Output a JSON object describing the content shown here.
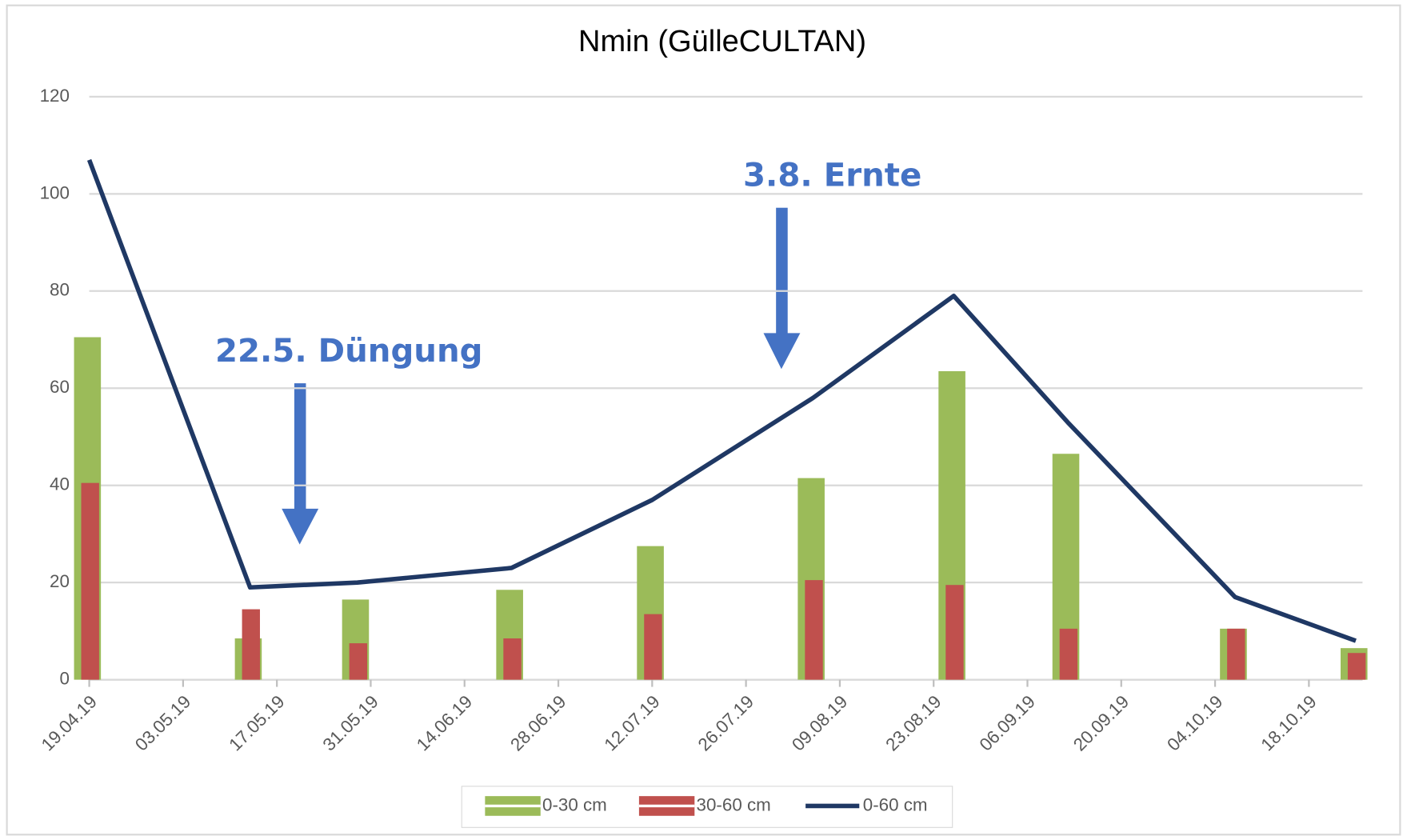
{
  "chart_data": {
    "type": "combo",
    "title": "Nmin (GülleCULTAN)",
    "x": [
      "2019-04-19",
      "2019-05-13",
      "2019-05-29",
      "2019-06-21",
      "2019-07-12",
      "2019-08-05",
      "2019-08-26",
      "2019-09-12",
      "2019-10-07",
      "2019-10-25"
    ],
    "series": [
      {
        "name": "0-30 cm",
        "type": "bar",
        "color": "#9bbb59",
        "values": [
          70.5,
          8.5,
          16.5,
          18.5,
          27.5,
          41.5,
          63.5,
          46.5,
          10.5,
          6.5
        ]
      },
      {
        "name": "30-60 cm",
        "type": "bar",
        "color": "#c0504d",
        "values": [
          40.5,
          14.5,
          7.5,
          8.5,
          13.5,
          20.5,
          19.5,
          10.5,
          10.5,
          5.5
        ]
      },
      {
        "name": "0-60 cm",
        "type": "line",
        "color": "#1f3864",
        "values": [
          107,
          19,
          20,
          23,
          37,
          58,
          79,
          53,
          17,
          8
        ]
      }
    ],
    "xlim": [
      "2019-04-19",
      "2019-10-26"
    ],
    "xticks": [
      {
        "value": "2019-04-19",
        "label": "19.04.19"
      },
      {
        "value": "2019-05-03",
        "label": "03.05.19"
      },
      {
        "value": "2019-05-17",
        "label": "17.05.19"
      },
      {
        "value": "2019-05-31",
        "label": "31.05.19"
      },
      {
        "value": "2019-06-14",
        "label": "14.06.19"
      },
      {
        "value": "2019-06-28",
        "label": "28.06.19"
      },
      {
        "value": "2019-07-12",
        "label": "12.07.19"
      },
      {
        "value": "2019-07-26",
        "label": "26.07.19"
      },
      {
        "value": "2019-08-09",
        "label": "09.08.19"
      },
      {
        "value": "2019-08-23",
        "label": "23.08.19"
      },
      {
        "value": "2019-09-06",
        "label": "06.09.19"
      },
      {
        "value": "2019-09-20",
        "label": "20.09.19"
      },
      {
        "value": "2019-10-04",
        "label": "04.10.19"
      },
      {
        "value": "2019-10-18",
        "label": "18.10.19"
      }
    ],
    "ylim": [
      0,
      120
    ],
    "yticks": [
      0,
      20,
      40,
      60,
      80,
      100,
      120
    ],
    "grid": true,
    "annotations": [
      "22.5. Düngung",
      "3.8. Ernte"
    ],
    "legend": "bottom"
  }
}
